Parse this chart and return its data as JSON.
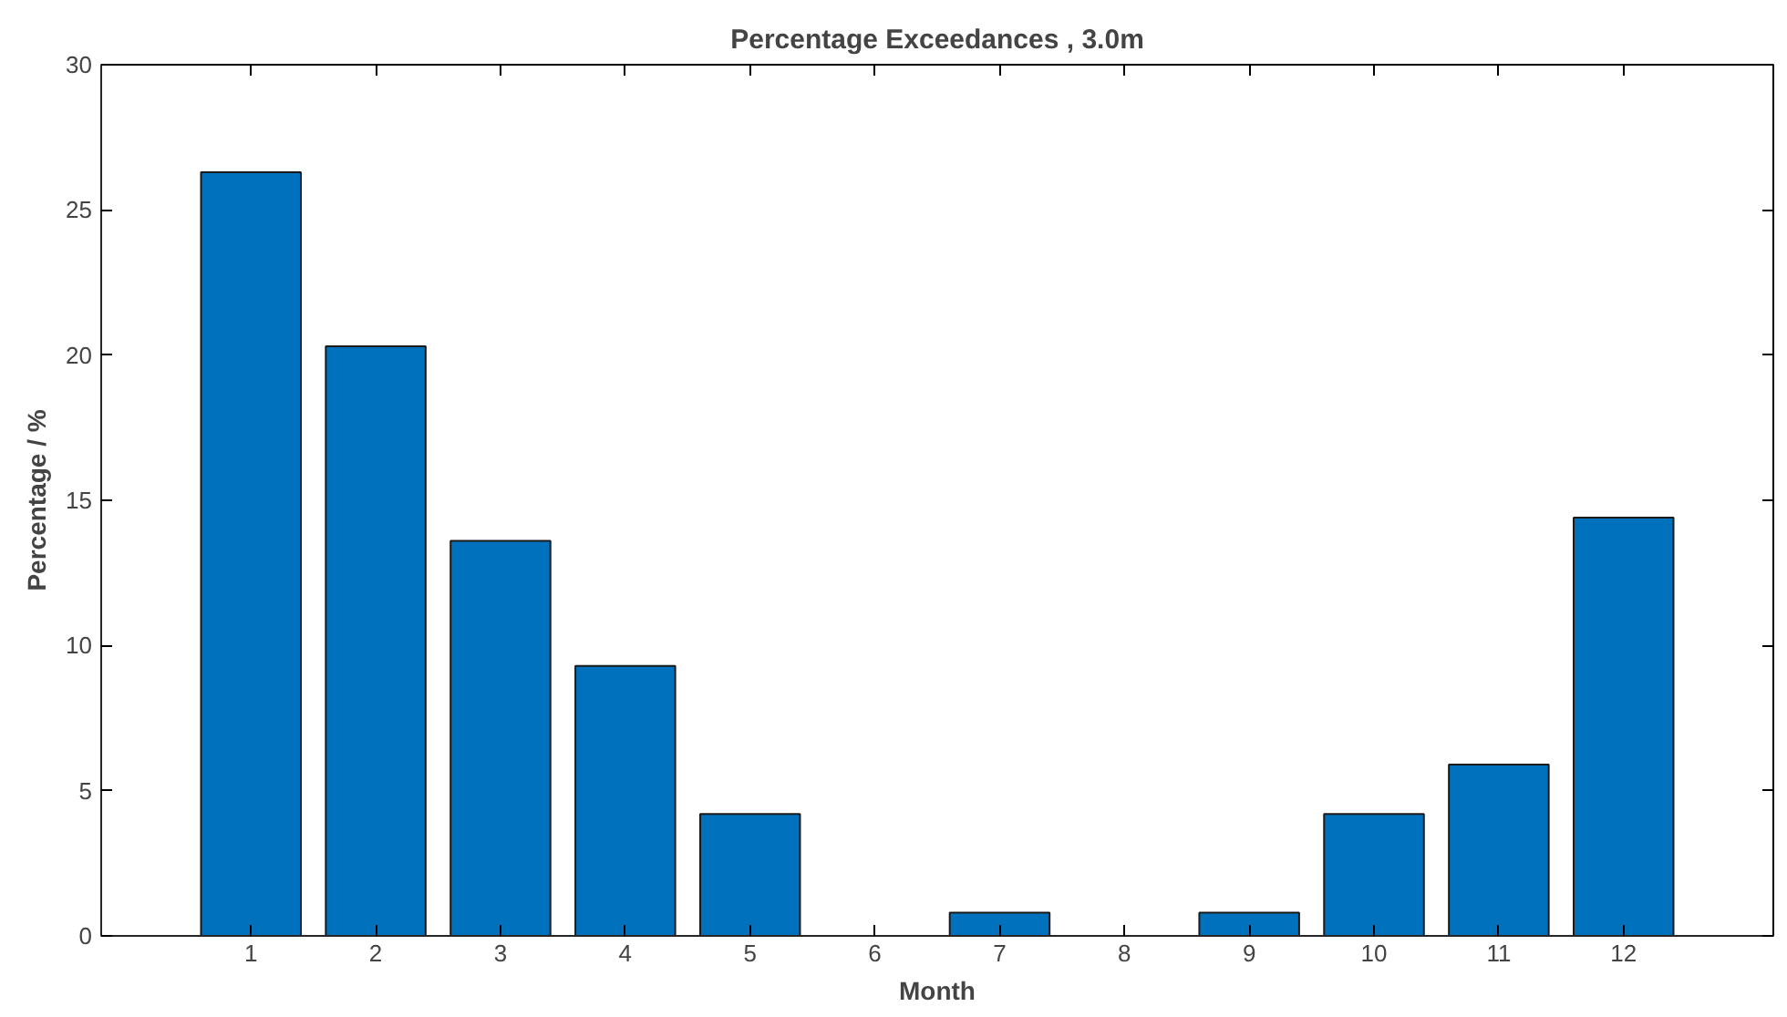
{
  "chart_data": {
    "type": "bar",
    "title": "Percentage Exceedances , 3.0m",
    "xlabel": "Month",
    "ylabel": "Percentage / %",
    "x": [
      1,
      2,
      3,
      4,
      5,
      6,
      7,
      8,
      9,
      10,
      11,
      12
    ],
    "values": [
      26.3,
      20.3,
      13.6,
      9.3,
      4.2,
      0,
      0.8,
      0,
      0.8,
      4.2,
      5.9,
      14.4
    ],
    "color": "#0072bd",
    "xlim": [
      -0.2,
      13.2
    ],
    "xticks": [
      1,
      2,
      3,
      4,
      5,
      6,
      7,
      8,
      9,
      10,
      11,
      12
    ],
    "ylim": [
      0,
      30
    ],
    "yticks": [
      0,
      5,
      10,
      15,
      20,
      25,
      30
    ],
    "grid": false
  }
}
